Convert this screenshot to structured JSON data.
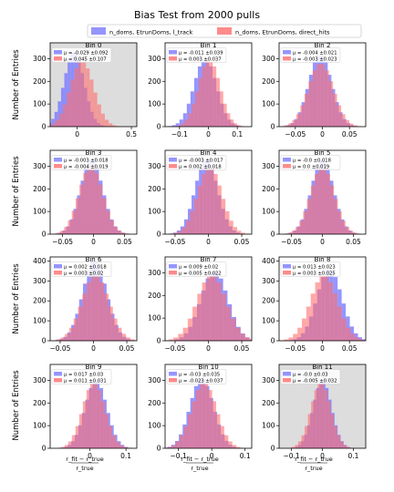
{
  "figure": {
    "title": "Bias Test from 2000 pulls",
    "ylabel": "Number of Entries",
    "xlabel_numerator": "r_fit − r_true",
    "xlabel_denominator": "r_true",
    "legend": [
      {
        "label": "n_doms, EtrunDoms, l_track",
        "color": "#6a6aff"
      },
      {
        "label": "n_doms, EtrunDoms, direct_hits",
        "color": "#ff7a7a"
      }
    ],
    "colors": {
      "series_a": "#7b7bff",
      "series_b": "#ff6e6e",
      "shaded_bg": "#dddddd"
    }
  },
  "chart_data": [
    {
      "type": "bar",
      "title": "Bin 0",
      "shaded": true,
      "xlim": [
        -0.25,
        0.55
      ],
      "ylim": [
        0,
        370
      ],
      "xticks": [
        0.0,
        0.5
      ],
      "yticks": [
        0,
        100,
        200,
        300
      ],
      "stats": [
        {
          "mu": "-0.029",
          "err": "0.092"
        },
        {
          "mu": "0.045",
          "err": "0.107"
        }
      ],
      "series": [
        {
          "center": -0.029,
          "width": 0.092,
          "peak": 330
        },
        {
          "center": 0.045,
          "width": 0.107,
          "peak": 290
        }
      ]
    },
    {
      "type": "bar",
      "title": "Bin 1",
      "shaded": false,
      "xlim": [
        -0.15,
        0.15
      ],
      "ylim": [
        0,
        370
      ],
      "xticks": [
        -0.1,
        0.0,
        0.1
      ],
      "yticks": [
        0,
        100,
        200,
        300
      ],
      "stats": [
        {
          "mu": "-0.011",
          "err": "0.039"
        },
        {
          "mu": "0.003",
          "err": "0.037"
        }
      ],
      "series": [
        {
          "center": -0.011,
          "width": 0.039,
          "peak": 300
        },
        {
          "center": 0.003,
          "width": 0.037,
          "peak": 300
        }
      ]
    },
    {
      "type": "bar",
      "title": "Bin 2",
      "shaded": false,
      "xlim": [
        -0.08,
        0.08
      ],
      "ylim": [
        0,
        370
      ],
      "xticks": [
        -0.05,
        0.0,
        0.05
      ],
      "yticks": [
        0,
        100,
        200,
        300
      ],
      "stats": [
        {
          "mu": "-0.004",
          "err": "0.021"
        },
        {
          "mu": "-0.003",
          "err": "0.023"
        }
      ],
      "series": [
        {
          "center": -0.004,
          "width": 0.021,
          "peak": 320
        },
        {
          "center": -0.003,
          "width": 0.023,
          "peak": 280
        }
      ]
    },
    {
      "type": "bar",
      "title": "Bin 3",
      "shaded": false,
      "xlim": [
        -0.07,
        0.07
      ],
      "ylim": [
        0,
        370
      ],
      "xticks": [
        -0.05,
        0.0,
        0.05
      ],
      "yticks": [
        0,
        100,
        200,
        300
      ],
      "stats": [
        {
          "mu": "-0.003",
          "err": "0.018"
        },
        {
          "mu": "-0.004",
          "err": "0.019"
        }
      ],
      "series": [
        {
          "center": -0.003,
          "width": 0.018,
          "peak": 330
        },
        {
          "center": -0.004,
          "width": 0.019,
          "peak": 305
        }
      ]
    },
    {
      "type": "bar",
      "title": "Bin 4",
      "shaded": false,
      "xlim": [
        -0.065,
        0.065
      ],
      "ylim": [
        0,
        370
      ],
      "xticks": [
        -0.05,
        0.0,
        0.05
      ],
      "yticks": [
        0,
        100,
        200,
        300
      ],
      "stats": [
        {
          "mu": "-0.003",
          "err": "0.017"
        },
        {
          "mu": "0.002",
          "err": "0.018"
        }
      ],
      "series": [
        {
          "center": -0.003,
          "width": 0.017,
          "peak": 330
        },
        {
          "center": 0.002,
          "width": 0.018,
          "peak": 300
        }
      ]
    },
    {
      "type": "bar",
      "title": "Bin 5",
      "shaded": false,
      "xlim": [
        -0.07,
        0.07
      ],
      "ylim": [
        0,
        370
      ],
      "xticks": [
        -0.05,
        0.0,
        0.05
      ],
      "yticks": [
        0,
        100,
        200,
        300
      ],
      "stats": [
        {
          "mu": "-0.0",
          "err": "0.018"
        },
        {
          "mu": "0.0",
          "err": "0.019"
        }
      ],
      "series": [
        {
          "center": 0.0,
          "width": 0.018,
          "peak": 330
        },
        {
          "center": 0.0,
          "width": 0.019,
          "peak": 300
        }
      ]
    },
    {
      "type": "bar",
      "title": "Bin 6",
      "shaded": false,
      "xlim": [
        -0.065,
        0.065
      ],
      "ylim": [
        0,
        420
      ],
      "xticks": [
        -0.05,
        0.0,
        0.05
      ],
      "yticks": [
        0,
        100,
        200,
        300,
        400
      ],
      "stats": [
        {
          "mu": "0.002",
          "err": "0.018"
        },
        {
          "mu": "0.003",
          "err": "0.02"
        }
      ],
      "series": [
        {
          "center": 0.002,
          "width": 0.018,
          "peak": 400
        },
        {
          "center": 0.003,
          "width": 0.02,
          "peak": 330
        }
      ]
    },
    {
      "type": "bar",
      "title": "Bin 7",
      "shaded": false,
      "xlim": [
        -0.065,
        0.065
      ],
      "ylim": [
        0,
        370
      ],
      "xticks": [
        -0.05,
        0.0,
        0.05
      ],
      "yticks": [
        0,
        100,
        200,
        300
      ],
      "stats": [
        {
          "mu": "0.009",
          "err": "0.02"
        },
        {
          "mu": "0.005",
          "err": "0.022"
        }
      ],
      "series": [
        {
          "center": 0.009,
          "width": 0.02,
          "peak": 310
        },
        {
          "center": 0.005,
          "width": 0.022,
          "peak": 290
        }
      ]
    },
    {
      "type": "bar",
      "title": "Bin 8",
      "shaded": false,
      "xlim": [
        -0.08,
        0.08
      ],
      "ylim": [
        0,
        420
      ],
      "xticks": [
        -0.05,
        0.0,
        0.05
      ],
      "yticks": [
        0,
        100,
        200,
        300,
        400
      ],
      "stats": [
        {
          "mu": "0.013",
          "err": "0.023"
        },
        {
          "mu": "0.003",
          "err": "0.025"
        }
      ],
      "series": [
        {
          "center": 0.013,
          "width": 0.023,
          "peak": 360
        },
        {
          "center": 0.003,
          "width": 0.025,
          "peak": 330
        }
      ]
    },
    {
      "type": "bar",
      "title": "Bin 9",
      "shaded": false,
      "xlim": [
        -0.11,
        0.13
      ],
      "ylim": [
        0,
        370
      ],
      "xticks": [
        0.0,
        0.1
      ],
      "yticks": [
        0,
        100,
        200,
        300
      ],
      "stats": [
        {
          "mu": "0.017",
          "err": "0.03"
        },
        {
          "mu": "0.011",
          "err": "0.031"
        }
      ],
      "series": [
        {
          "center": 0.017,
          "width": 0.03,
          "peak": 300
        },
        {
          "center": 0.011,
          "width": 0.031,
          "peak": 290
        }
      ]
    },
    {
      "type": "bar",
      "title": "Bin 10",
      "shaded": false,
      "xlim": [
        -0.14,
        0.12
      ],
      "ylim": [
        0,
        370
      ],
      "xticks": [
        -0.1,
        0.0,
        0.1
      ],
      "yticks": [
        0,
        100,
        200,
        300
      ],
      "stats": [
        {
          "mu": "-0.03",
          "err": "0.035"
        },
        {
          "mu": "-0.023",
          "err": "0.037"
        }
      ],
      "series": [
        {
          "center": -0.03,
          "width": 0.035,
          "peak": 310
        },
        {
          "center": -0.023,
          "width": 0.037,
          "peak": 290
        }
      ]
    },
    {
      "type": "bar",
      "title": "Bin 11",
      "shaded": true,
      "xlim": [
        -0.14,
        0.14
      ],
      "ylim": [
        0,
        370
      ],
      "xticks": [
        -0.1,
        0.0,
        0.1
      ],
      "yticks": [
        0,
        100,
        200,
        300
      ],
      "stats": [
        {
          "mu": "-0.0",
          "err": "0.03"
        },
        {
          "mu": "-0.005",
          "err": "0.032"
        }
      ],
      "series": [
        {
          "center": 0.0,
          "width": 0.03,
          "peak": 300
        },
        {
          "center": -0.005,
          "width": 0.032,
          "peak": 290
        }
      ]
    }
  ]
}
